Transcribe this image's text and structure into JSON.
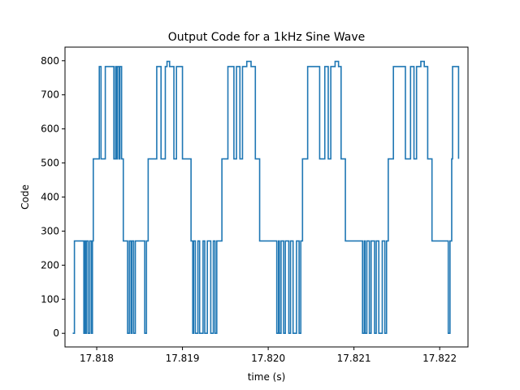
{
  "chart_data": {
    "type": "line",
    "title": "Output Code for a 1kHz Sine Wave",
    "xlabel": "time (s)",
    "ylabel": "Code",
    "xlim": [
      17.81763,
      17.82233
    ],
    "ylim": [
      -40,
      840
    ],
    "xticks": [
      17.818,
      17.819,
      17.82,
      17.821,
      17.822
    ],
    "xtick_labels": [
      "17.818",
      "17.819",
      "17.820",
      "17.821",
      "17.822"
    ],
    "yticks": [
      0,
      100,
      200,
      300,
      400,
      500,
      600,
      700,
      800
    ],
    "ytick_labels": [
      "0",
      "100",
      "200",
      "300",
      "400",
      "500",
      "600",
      "700",
      "800"
    ],
    "grid": false,
    "line_color": "#1f77b4",
    "series": [
      {
        "step": "post",
        "x": [
          17.81772,
          17.81774,
          17.81785,
          17.81786,
          17.81787,
          17.81788,
          17.8179,
          17.81792,
          17.81794,
          17.81795,
          17.81796,
          17.81803,
          17.81805,
          17.8181,
          17.8182,
          17.81822,
          17.81823,
          17.81824,
          17.81826,
          17.81827,
          17.81829,
          17.81831,
          17.81836,
          17.81838,
          17.8184,
          17.81841,
          17.81843,
          17.81845,
          17.81856,
          17.81858,
          17.8186,
          17.8187,
          17.81875,
          17.8188,
          17.81882,
          17.81885,
          17.8189,
          17.81893,
          17.819,
          17.8191,
          17.81912,
          17.81913,
          17.81915,
          17.81918,
          17.8192,
          17.81924,
          17.81926,
          17.81929,
          17.81933,
          17.81936,
          17.81938,
          17.8194,
          17.81946,
          17.81953,
          17.8196,
          17.81963,
          17.81967,
          17.8197,
          17.81975,
          17.8198,
          17.81985,
          17.8199,
          17.8201,
          17.82012,
          17.82013,
          17.82015,
          17.82018,
          17.8202,
          17.82024,
          17.82026,
          17.82029,
          17.82033,
          17.82036,
          17.82038,
          17.8204,
          17.82046,
          17.8206,
          17.82066,
          17.8207,
          17.82073,
          17.82078,
          17.82082,
          17.82085,
          17.8209,
          17.8211,
          17.82112,
          17.82113,
          17.82115,
          17.82118,
          17.8212,
          17.82124,
          17.82126,
          17.82129,
          17.82133,
          17.82136,
          17.82138,
          17.8214,
          17.82146,
          17.8216,
          17.82166,
          17.8217,
          17.82173,
          17.82178,
          17.82182,
          17.82186,
          17.82191,
          17.8221,
          17.82212,
          17.82214,
          17.82215,
          17.82222
        ],
        "y": [
          0,
          271,
          0,
          271,
          0,
          271,
          0,
          271,
          0,
          271,
          512,
          783,
          512,
          783,
          512,
          783,
          512,
          783,
          512,
          783,
          512,
          271,
          0,
          271,
          0,
          271,
          0,
          271,
          0,
          271,
          512,
          783,
          512,
          783,
          798,
          783,
          512,
          783,
          512,
          271,
          0,
          271,
          0,
          271,
          0,
          271,
          0,
          271,
          0,
          271,
          0,
          271,
          512,
          783,
          512,
          783,
          512,
          783,
          798,
          783,
          512,
          271,
          0,
          271,
          0,
          271,
          0,
          271,
          0,
          271,
          0,
          271,
          0,
          271,
          512,
          783,
          512,
          783,
          512,
          783,
          798,
          783,
          512,
          271,
          0,
          271,
          0,
          271,
          0,
          271,
          0,
          271,
          0,
          271,
          0,
          271,
          512,
          783,
          512,
          783,
          512,
          783,
          798,
          783,
          512,
          271,
          0,
          271,
          512,
          783,
          512
        ]
      }
    ]
  }
}
